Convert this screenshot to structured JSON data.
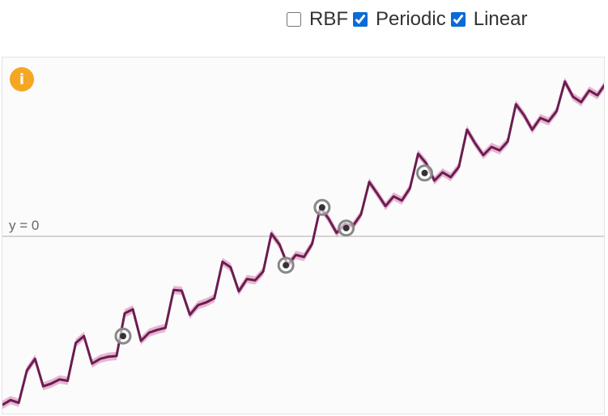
{
  "controls": {
    "options": [
      {
        "label": "RBF",
        "checked": false
      },
      {
        "label": "Periodic",
        "checked": true
      },
      {
        "label": "Linear",
        "checked": true
      }
    ]
  },
  "plot": {
    "info_icon": "info-icon",
    "zero_label": "y = 0"
  },
  "colors": {
    "line": "#6b1d4f",
    "band": "#d67bb0",
    "accent": "#f5a623",
    "checkbox": "#0b6bd6"
  },
  "chart_data": {
    "type": "line",
    "x_range": [
      0,
      100
    ],
    "y_range": [
      -2.6,
      2.6
    ],
    "mean": [
      -2.45,
      -2.38,
      -2.42,
      -1.95,
      -1.78,
      -2.18,
      -2.14,
      -2.08,
      -2.1,
      -1.55,
      -1.45,
      -1.85,
      -1.78,
      -1.75,
      -1.74,
      -1.12,
      -1.06,
      -1.52,
      -1.4,
      -1.36,
      -1.33,
      -0.78,
      -0.79,
      -1.14,
      -1.0,
      -0.96,
      -0.9,
      -0.37,
      -0.45,
      -0.8,
      -0.62,
      -0.64,
      -0.51,
      0.04,
      -0.12,
      -0.42,
      -0.27,
      -0.3,
      -0.11,
      0.42,
      0.26,
      0.05,
      0.18,
      0.15,
      0.32,
      0.79,
      0.62,
      0.44,
      0.58,
      0.52,
      0.7,
      1.2,
      1.06,
      0.81,
      0.93,
      0.86,
      1.01,
      1.55,
      1.35,
      1.18,
      1.3,
      1.25,
      1.38,
      1.92,
      1.76,
      1.55,
      1.72,
      1.67,
      1.82,
      2.25,
      2.03,
      1.95,
      2.12,
      2.05,
      2.22
    ],
    "observations": [
      {
        "x": 20,
        "y": -1.45
      },
      {
        "x": 47,
        "y": -0.42
      },
      {
        "x": 53,
        "y": 0.42
      },
      {
        "x": 57,
        "y": 0.12
      },
      {
        "x": 70,
        "y": 0.92
      }
    ]
  }
}
